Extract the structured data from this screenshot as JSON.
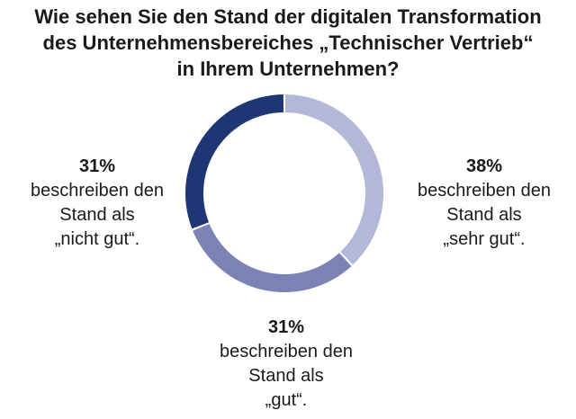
{
  "chart_data": {
    "type": "pie",
    "variant": "donut",
    "title_lines": [
      "Wie sehen Sie den Stand der digitalen Transformation",
      "des Unternehmensbereiches „Technischer Vertrieb“",
      "in Ihrem Unternehmen?"
    ],
    "slices": [
      {
        "name": "sehr gut",
        "value": 38,
        "color": "#b3b8d8",
        "label": {
          "pct": "38%",
          "line1": "beschreiben den",
          "line2": "Stand als",
          "line3": "„sehr gut“."
        }
      },
      {
        "name": "gut",
        "value": 31,
        "color": "#7b82b5",
        "label": {
          "pct": "31%",
          "line1": "beschreiben den",
          "line2": "Stand als",
          "line3": "„gut“."
        }
      },
      {
        "name": "nicht gut",
        "value": 31,
        "color": "#1f3675",
        "label": {
          "pct": "31%",
          "line1": "beschreiben den",
          "line2": "Stand als",
          "line3": "„nicht gut“."
        }
      }
    ]
  }
}
